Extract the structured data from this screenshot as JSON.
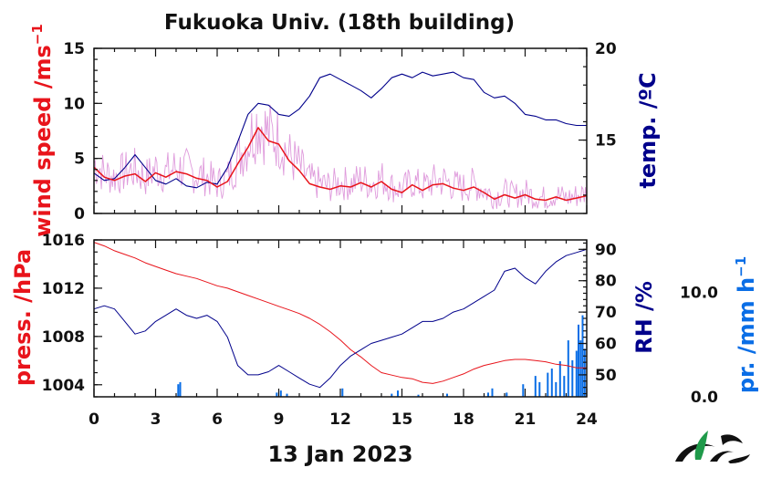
{
  "chart_data": {
    "type": "line",
    "title": "Fukuoka Univ. (18th building)",
    "date_label": "13 Jan 2023",
    "x_ticks": [
      "0",
      "3",
      "6",
      "9",
      "12",
      "15",
      "18",
      "21",
      "24"
    ],
    "xlim": [
      0,
      24
    ],
    "colors": {
      "wind_speed": "#e8141b",
      "wind_gust": "#d98ad6",
      "temperature": "#00008b",
      "pressure": "#e8141b",
      "humidity": "#00008b",
      "precipitation": "#0a6ee6"
    },
    "top_panel": {
      "left_axis": {
        "label": "wind speed /ms",
        "unit_exp": "−1",
        "ylim": [
          0,
          15
        ],
        "ticks": [
          "0",
          "5",
          "10",
          "15"
        ]
      },
      "right_axis": {
        "label": "temp. /ºC",
        "ylim": [
          11,
          20
        ],
        "ticks": [
          "15",
          "20"
        ]
      },
      "wind_speed": {
        "x": [
          0,
          0.5,
          1,
          1.5,
          2,
          2.5,
          3,
          3.5,
          4,
          4.5,
          5,
          5.5,
          6,
          6.5,
          7,
          7.5,
          8,
          8.5,
          9,
          9.5,
          10,
          10.5,
          11,
          11.5,
          12,
          12.5,
          13,
          13.5,
          14,
          14.5,
          15,
          15.5,
          16,
          16.5,
          17,
          17.5,
          18,
          18.5,
          19,
          19.5,
          20,
          20.5,
          21,
          21.5,
          22,
          22.5,
          23,
          23.5,
          24
        ],
        "y": [
          4.2,
          3.3,
          3.0,
          3.4,
          3.6,
          2.9,
          3.7,
          3.3,
          3.8,
          3.6,
          3.2,
          3.0,
          2.4,
          2.9,
          4.5,
          6.0,
          7.8,
          6.6,
          6.3,
          4.8,
          3.9,
          2.7,
          2.4,
          2.2,
          2.5,
          2.4,
          2.8,
          2.4,
          2.9,
          2.2,
          1.9,
          2.6,
          2.1,
          2.6,
          2.7,
          2.3,
          2.1,
          2.4,
          1.9,
          1.3,
          1.7,
          1.4,
          1.7,
          1.3,
          1.2,
          1.5,
          1.2,
          1.4,
          1.6
        ]
      },
      "temperature": {
        "x": [
          0,
          0.5,
          1,
          1.5,
          2,
          2.5,
          3,
          3.5,
          4,
          4.5,
          5,
          5.5,
          6,
          6.5,
          7,
          7.5,
          8,
          8.5,
          9,
          9.5,
          10,
          10.5,
          11,
          11.5,
          12,
          12.5,
          13,
          13.5,
          14,
          14.5,
          15,
          15.5,
          16,
          16.5,
          17,
          17.5,
          18,
          18.5,
          19,
          19.5,
          20,
          20.5,
          21,
          21.5,
          22,
          22.5,
          23,
          23.5,
          24
        ],
        "y": [
          13.2,
          12.8,
          12.9,
          13.5,
          14.2,
          13.5,
          12.8,
          12.6,
          12.9,
          12.5,
          12.4,
          12.7,
          12.6,
          13.5,
          14.9,
          16.4,
          17.0,
          16.9,
          16.4,
          16.3,
          16.7,
          17.4,
          18.4,
          18.6,
          18.3,
          18.0,
          17.7,
          17.3,
          17.8,
          18.4,
          18.6,
          18.4,
          18.7,
          18.5,
          18.6,
          18.7,
          18.4,
          18.3,
          17.6,
          17.3,
          17.4,
          17.0,
          16.4,
          16.3,
          16.1,
          16.1,
          15.9,
          15.8,
          15.8
        ]
      }
    },
    "bottom_panel": {
      "left_axis": {
        "label": "press. /hPa",
        "ylim": [
          1003,
          1016
        ],
        "ticks": [
          "1004",
          "1008",
          "1012",
          "1016"
        ]
      },
      "right_axis": {
        "label": "RH /%",
        "ylim": [
          43,
          93
        ],
        "ticks": [
          "50",
          "60",
          "70",
          "80",
          "90"
        ]
      },
      "precip_axis": {
        "label": "pr. /mm h",
        "unit_exp": "−1",
        "ylim": [
          0,
          15
        ],
        "ticks": [
          "0.0",
          "10.0"
        ]
      },
      "pressure": {
        "x": [
          0,
          0.5,
          1,
          1.5,
          2,
          2.5,
          3,
          3.5,
          4,
          4.5,
          5,
          5.5,
          6,
          6.5,
          7,
          7.5,
          8,
          8.5,
          9,
          9.5,
          10,
          10.5,
          11,
          11.5,
          12,
          12.5,
          13,
          13.5,
          14,
          14.5,
          15,
          15.5,
          16,
          16.5,
          17,
          17.5,
          18,
          18.5,
          19,
          19.5,
          20,
          20.5,
          21,
          21.5,
          22,
          22.5,
          23,
          23.5,
          24
        ],
        "y": [
          1015.8,
          1015.5,
          1015.1,
          1014.8,
          1014.5,
          1014.1,
          1013.8,
          1013.5,
          1013.2,
          1013.0,
          1012.8,
          1012.5,
          1012.2,
          1012.0,
          1011.7,
          1011.4,
          1011.1,
          1010.8,
          1010.5,
          1010.2,
          1009.9,
          1009.5,
          1009.0,
          1008.4,
          1007.7,
          1006.9,
          1006.3,
          1005.6,
          1005.0,
          1004.8,
          1004.6,
          1004.5,
          1004.2,
          1004.1,
          1004.3,
          1004.6,
          1004.9,
          1005.3,
          1005.6,
          1005.8,
          1006.0,
          1006.1,
          1006.1,
          1006.0,
          1005.9,
          1005.7,
          1005.6,
          1005.4,
          1005.4
        ]
      },
      "humidity": {
        "x": [
          0,
          0.5,
          1,
          1.5,
          2,
          2.5,
          3,
          3.5,
          4,
          4.5,
          5,
          5.5,
          6,
          6.5,
          7,
          7.5,
          8,
          8.5,
          9,
          9.5,
          10,
          10.5,
          11,
          11.5,
          12,
          12.5,
          13,
          13.5,
          14,
          14.5,
          15,
          15.5,
          16,
          16.5,
          17,
          17.5,
          18,
          18.5,
          19,
          19.5,
          20,
          20.5,
          21,
          21.5,
          22,
          22.5,
          23,
          23.5,
          24
        ],
        "y": [
          71,
          72,
          71,
          67,
          63,
          64,
          67,
          69,
          71,
          69,
          68,
          69,
          67,
          62,
          53,
          50,
          50,
          51,
          53,
          51,
          49,
          47,
          46,
          49,
          53,
          56,
          58,
          60,
          61,
          62,
          63,
          65,
          67,
          67,
          68,
          70,
          71,
          73,
          75,
          77,
          83,
          84,
          81,
          79,
          83,
          86,
          88,
          89,
          90
        ]
      },
      "precipitation": {
        "x": [
          4.1,
          4.2,
          8.9,
          9.1,
          9.4,
          12.1,
          14.5,
          14.8,
          15.8,
          17.2,
          19.2,
          19.4,
          20.1,
          20.9,
          21.5,
          21.7,
          22.1,
          22.3,
          22.5,
          22.7,
          22.9,
          23.1,
          23.3,
          23.5,
          23.6,
          23.7,
          23.8,
          23.9
        ],
        "y": [
          1.2,
          1.4,
          0.4,
          0.6,
          0.3,
          0.8,
          0.3,
          0.6,
          0.2,
          0.3,
          0.4,
          0.8,
          0.4,
          1.2,
          2.0,
          1.4,
          2.3,
          2.7,
          1.4,
          3.4,
          2.0,
          5.4,
          3.5,
          4.4,
          6.9,
          5.4,
          7.8,
          4.6
        ]
      }
    }
  }
}
